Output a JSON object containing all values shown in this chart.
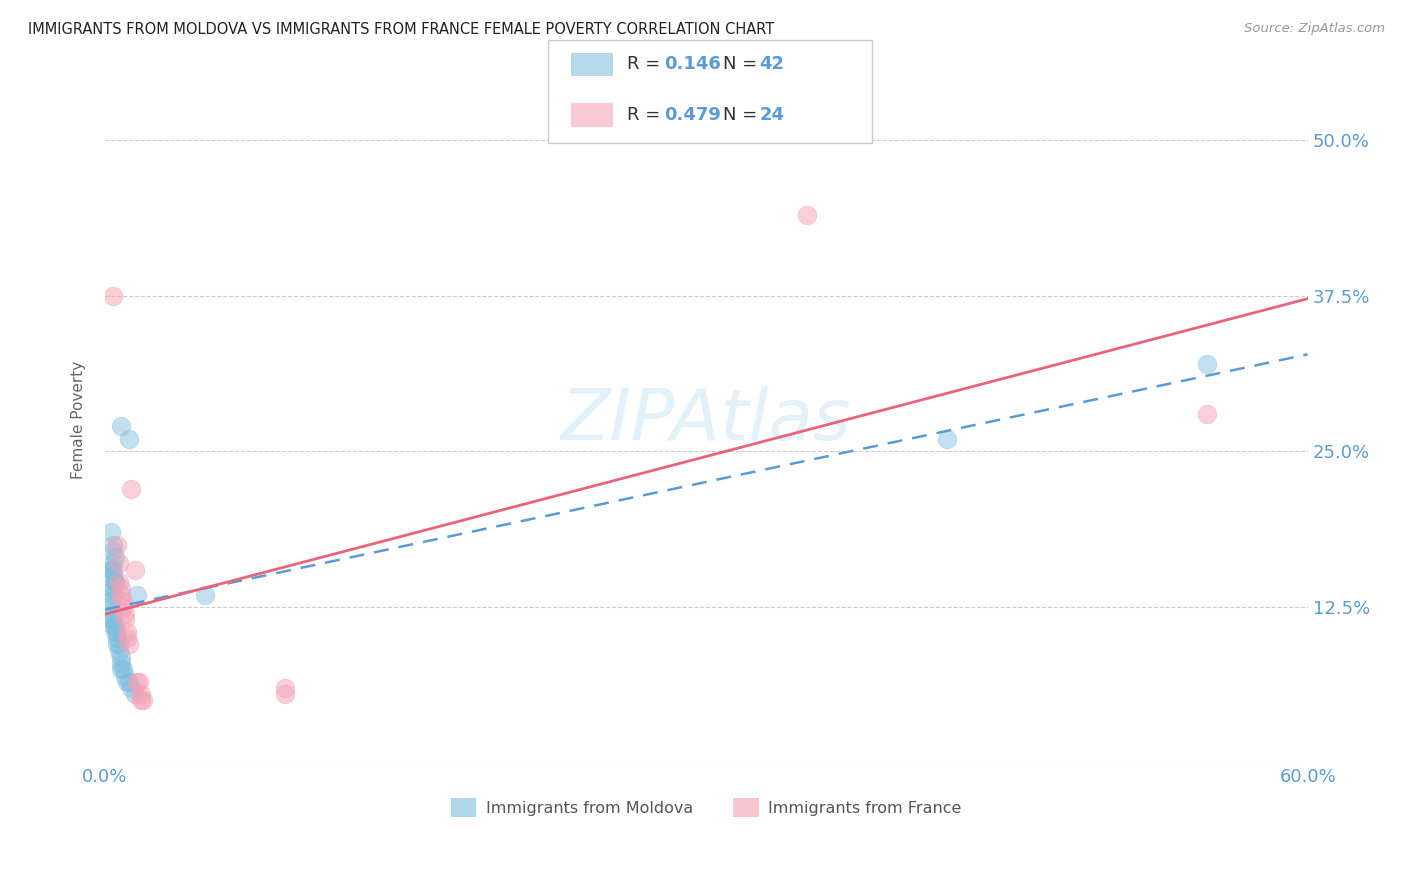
{
  "title": "IMMIGRANTS FROM MOLDOVA VS IMMIGRANTS FROM FRANCE FEMALE POVERTY CORRELATION CHART",
  "source": "Source: ZipAtlas.com",
  "ylabel": "Female Poverty",
  "xlim": [
    0.0,
    0.6
  ],
  "ylim": [
    0.0,
    0.55
  ],
  "x_ticks": [
    0.0,
    0.1,
    0.2,
    0.3,
    0.4,
    0.5,
    0.6
  ],
  "x_tick_labels": [
    "0.0%",
    "",
    "",
    "",
    "",
    "",
    "60.0%"
  ],
  "y_ticks": [
    0.0,
    0.125,
    0.25,
    0.375,
    0.5
  ],
  "y_tick_labels": [
    "",
    "12.5%",
    "25.0%",
    "37.5%",
    "50.0%"
  ],
  "moldova_R": 0.146,
  "moldova_N": 42,
  "france_R": 0.479,
  "france_N": 24,
  "moldova_color": "#7bbcde",
  "france_color": "#f4a0b5",
  "moldova_scatter": [
    [
      0.003,
      0.155
    ],
    [
      0.004,
      0.17
    ],
    [
      0.004,
      0.16
    ],
    [
      0.003,
      0.185
    ],
    [
      0.004,
      0.175
    ],
    [
      0.005,
      0.165
    ],
    [
      0.003,
      0.155
    ],
    [
      0.004,
      0.155
    ],
    [
      0.004,
      0.15
    ],
    [
      0.005,
      0.145
    ],
    [
      0.005,
      0.145
    ],
    [
      0.004,
      0.14
    ],
    [
      0.003,
      0.14
    ],
    [
      0.004,
      0.135
    ],
    [
      0.003,
      0.13
    ],
    [
      0.003,
      0.125
    ],
    [
      0.004,
      0.12
    ],
    [
      0.003,
      0.115
    ],
    [
      0.004,
      0.115
    ],
    [
      0.004,
      0.11
    ],
    [
      0.005,
      0.11
    ],
    [
      0.005,
      0.105
    ],
    [
      0.006,
      0.105
    ],
    [
      0.006,
      0.1
    ],
    [
      0.006,
      0.095
    ],
    [
      0.007,
      0.095
    ],
    [
      0.007,
      0.09
    ],
    [
      0.008,
      0.085
    ],
    [
      0.008,
      0.08
    ],
    [
      0.008,
      0.075
    ],
    [
      0.009,
      0.075
    ],
    [
      0.01,
      0.07
    ],
    [
      0.011,
      0.065
    ],
    [
      0.012,
      0.065
    ],
    [
      0.013,
      0.06
    ],
    [
      0.015,
      0.055
    ],
    [
      0.008,
      0.27
    ],
    [
      0.012,
      0.26
    ],
    [
      0.016,
      0.135
    ],
    [
      0.05,
      0.135
    ],
    [
      0.42,
      0.26
    ],
    [
      0.55,
      0.32
    ]
  ],
  "france_scatter": [
    [
      0.004,
      0.375
    ],
    [
      0.006,
      0.175
    ],
    [
      0.007,
      0.16
    ],
    [
      0.007,
      0.145
    ],
    [
      0.008,
      0.14
    ],
    [
      0.008,
      0.135
    ],
    [
      0.009,
      0.13
    ],
    [
      0.009,
      0.125
    ],
    [
      0.01,
      0.12
    ],
    [
      0.01,
      0.115
    ],
    [
      0.011,
      0.105
    ],
    [
      0.011,
      0.1
    ],
    [
      0.012,
      0.095
    ],
    [
      0.013,
      0.22
    ],
    [
      0.015,
      0.155
    ],
    [
      0.016,
      0.065
    ],
    [
      0.017,
      0.065
    ],
    [
      0.018,
      0.055
    ],
    [
      0.018,
      0.05
    ],
    [
      0.019,
      0.05
    ],
    [
      0.09,
      0.06
    ],
    [
      0.09,
      0.055
    ],
    [
      0.35,
      0.44
    ],
    [
      0.55,
      0.28
    ]
  ],
  "background_color": "#ffffff",
  "grid_color": "#cccccc",
  "tick_color": "#5b9bd5",
  "moldova_line_color": "#5b9bd5",
  "france_line_color": "#e8647a"
}
